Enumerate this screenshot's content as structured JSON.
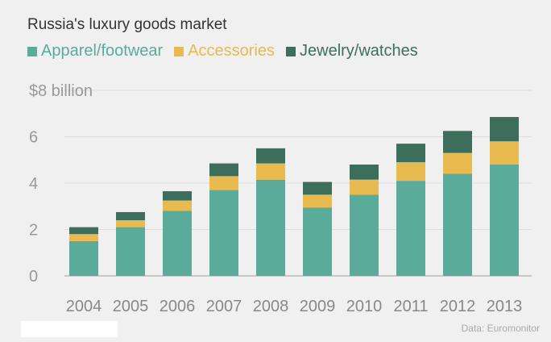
{
  "chart_data": {
    "type": "bar",
    "stacked": true,
    "title": "Russia's luxury goods market",
    "categories": [
      "2004",
      "2005",
      "2006",
      "2007",
      "2008",
      "2009",
      "2010",
      "2011",
      "2012",
      "2013"
    ],
    "series": [
      {
        "name": "Apparel/footwear",
        "color": "#5aab9a",
        "values": [
          1.5,
          2.1,
          2.8,
          3.7,
          4.15,
          2.95,
          3.5,
          4.1,
          4.4,
          4.8
        ]
      },
      {
        "name": "Accessories",
        "color": "#e8ba50",
        "values": [
          0.3,
          0.3,
          0.45,
          0.6,
          0.7,
          0.55,
          0.65,
          0.8,
          0.9,
          1.0
        ]
      },
      {
        "name": "Jewelry/watches",
        "color": "#3d6e5c",
        "values": [
          0.3,
          0.35,
          0.4,
          0.55,
          0.65,
          0.55,
          0.65,
          0.8,
          0.95,
          1.05
        ]
      }
    ],
    "yticks": [
      0,
      2,
      4,
      6,
      8
    ],
    "ytick_labels": [
      "0",
      "2",
      "4",
      "6",
      "$8 billion"
    ],
    "ylim": [
      0,
      8
    ],
    "grid": true,
    "legend_position": "top-left"
  },
  "source": "Data: Euromonitor"
}
